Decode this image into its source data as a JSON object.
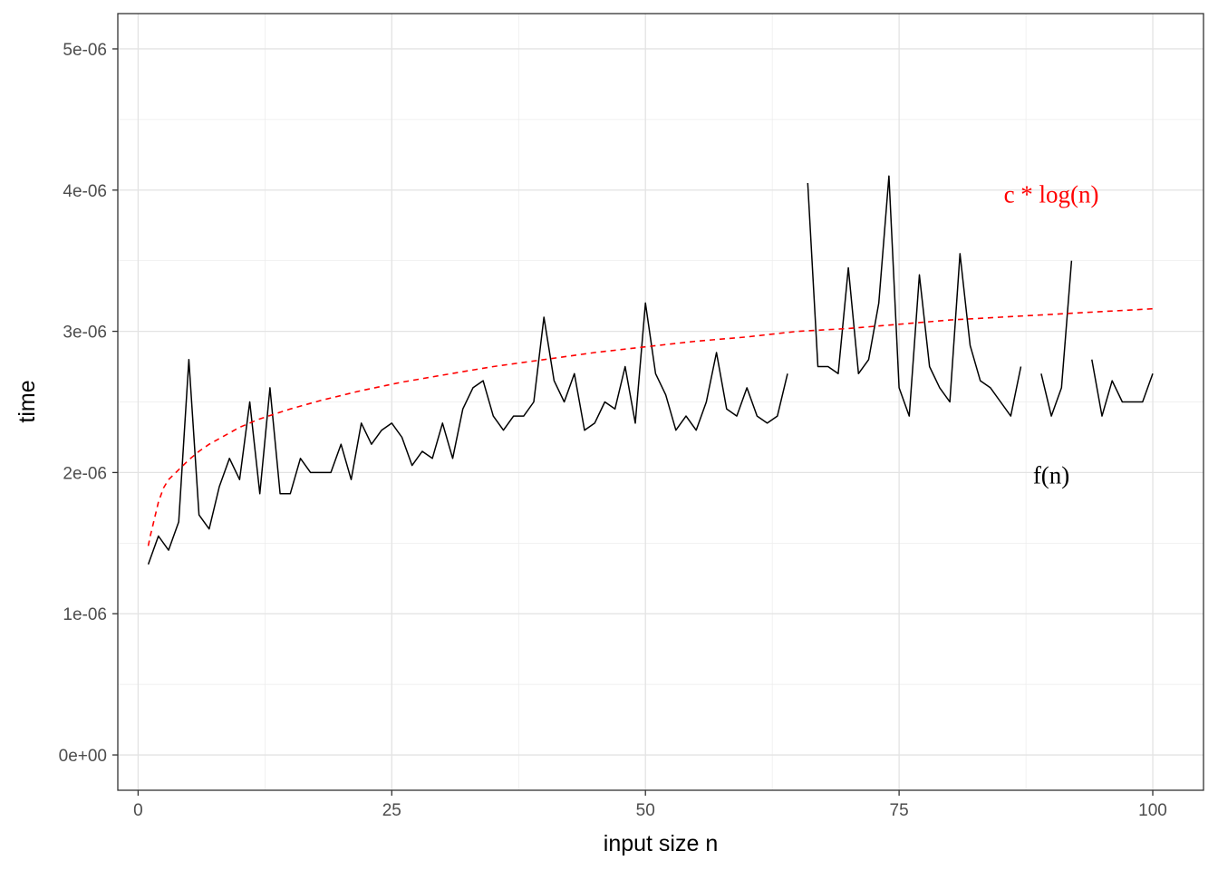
{
  "chart_data": {
    "type": "line",
    "xlabel": "input size n",
    "ylabel": "time",
    "xlim": [
      -2,
      105
    ],
    "ylim": [
      -2.5e-07,
      5.25e-06
    ],
    "x_ticks": [
      0,
      25,
      50,
      75,
      100
    ],
    "x_tick_labels": [
      "0",
      "25",
      "50",
      "75",
      "100"
    ],
    "y_ticks": [
      0,
      1e-06,
      2e-06,
      3e-06,
      4e-06,
      5e-06
    ],
    "y_tick_labels": [
      "0e+00",
      "1e-06",
      "2e-06",
      "3e-06",
      "4e-06",
      "5e-06"
    ],
    "grid": true,
    "theme": "bw",
    "series": [
      {
        "name": "f(n)",
        "color": "#000000",
        "dashed": false,
        "x": [
          1,
          2,
          3,
          4,
          5,
          6,
          7,
          8,
          9,
          10,
          11,
          12,
          13,
          14,
          15,
          16,
          17,
          18,
          19,
          20,
          21,
          22,
          23,
          24,
          25,
          26,
          27,
          28,
          29,
          30,
          31,
          32,
          33,
          34,
          35,
          36,
          37,
          38,
          39,
          40,
          41,
          42,
          43,
          44,
          45,
          46,
          47,
          48,
          49,
          50,
          51,
          52,
          53,
          54,
          55,
          56,
          57,
          58,
          59,
          60,
          61,
          62,
          63,
          64,
          65,
          66,
          67,
          68,
          69,
          70,
          71,
          72,
          73,
          74,
          75,
          76,
          77,
          78,
          79,
          80,
          81,
          82,
          83,
          84,
          85,
          86,
          87,
          88,
          89,
          90,
          91,
          92,
          93,
          94,
          95,
          96,
          97,
          98,
          99,
          100
        ],
        "y": [
          1.35e-06,
          1.55e-06,
          1.45e-06,
          1.65e-06,
          2.8e-06,
          1.7e-06,
          1.6e-06,
          1.9e-06,
          2.1e-06,
          1.95e-06,
          2.5e-06,
          1.85e-06,
          2.6e-06,
          1.85e-06,
          1.85e-06,
          2.1e-06,
          2e-06,
          2e-06,
          2e-06,
          2.2e-06,
          1.95e-06,
          2.35e-06,
          2.2e-06,
          2.3e-06,
          2.35e-06,
          2.25e-06,
          2.05e-06,
          2.15e-06,
          2.1e-06,
          2.35e-06,
          2.1e-06,
          2.45e-06,
          2.6e-06,
          2.65e-06,
          2.4e-06,
          2.3e-06,
          2.4e-06,
          2.4e-06,
          2.5e-06,
          3.1e-06,
          2.65e-06,
          2.5e-06,
          2.7e-06,
          2.3e-06,
          2.35e-06,
          2.5e-06,
          2.45e-06,
          2.75e-06,
          2.35e-06,
          3.2e-06,
          2.7e-06,
          2.55e-06,
          2.3e-06,
          2.4e-06,
          2.3e-06,
          2.5e-06,
          2.85e-06,
          2.45e-06,
          2.4e-06,
          2.6e-06,
          2.4e-06,
          2.35e-06,
          2.4e-06,
          2.7e-06,
          null,
          4.05e-06,
          2.75e-06,
          2.75e-06,
          2.7e-06,
          3.45e-06,
          2.7e-06,
          2.8e-06,
          3.2e-06,
          4.1e-06,
          2.6e-06,
          2.4e-06,
          3.4e-06,
          2.75e-06,
          2.6e-06,
          2.5e-06,
          3.55e-06,
          2.9e-06,
          2.65e-06,
          2.6e-06,
          2.5e-06,
          2.4e-06,
          2.75e-06,
          null,
          2.7e-06,
          2.4e-06,
          2.6e-06,
          3.5e-06,
          null,
          2.8e-06,
          2.4e-06,
          2.65e-06,
          2.5e-06,
          2.5e-06,
          2.5e-06,
          2.7e-06
        ]
      },
      {
        "name": "c * log(n)",
        "color": "#ff0000",
        "dashed": true,
        "x": [
          1,
          1.2,
          1.5,
          2,
          2.5,
          3,
          4,
          5,
          6,
          7,
          8,
          10,
          12,
          15,
          18,
          22,
          26,
          30,
          35,
          40,
          45,
          50,
          55,
          60,
          65,
          70,
          75,
          80,
          85,
          90,
          95,
          100
        ],
        "y": [
          1.48e-06,
          1.55e-06,
          1.64e-06,
          1.79e-06,
          1.89e-06,
          1.95e-06,
          2.02e-06,
          2.09e-06,
          2.15e-06,
          2.2e-06,
          2.24e-06,
          2.32e-06,
          2.38e-06,
          2.45e-06,
          2.51e-06,
          2.58e-06,
          2.64e-06,
          2.69e-06,
          2.75e-06,
          2.8e-06,
          2.85e-06,
          2.89e-06,
          2.93e-06,
          2.96e-06,
          3e-06,
          3.02e-06,
          3.05e-06,
          3.08e-06,
          3.1e-06,
          3.12e-06,
          3.14e-06,
          3.16e-06
        ]
      }
    ],
    "annotations": [
      {
        "text": "c * log(n)",
        "x": 90,
        "y": 3.97e-06,
        "color": "#ff0000"
      },
      {
        "text": "f(n)",
        "x": 90,
        "y": 1.98e-06,
        "color": "#000000"
      }
    ]
  }
}
